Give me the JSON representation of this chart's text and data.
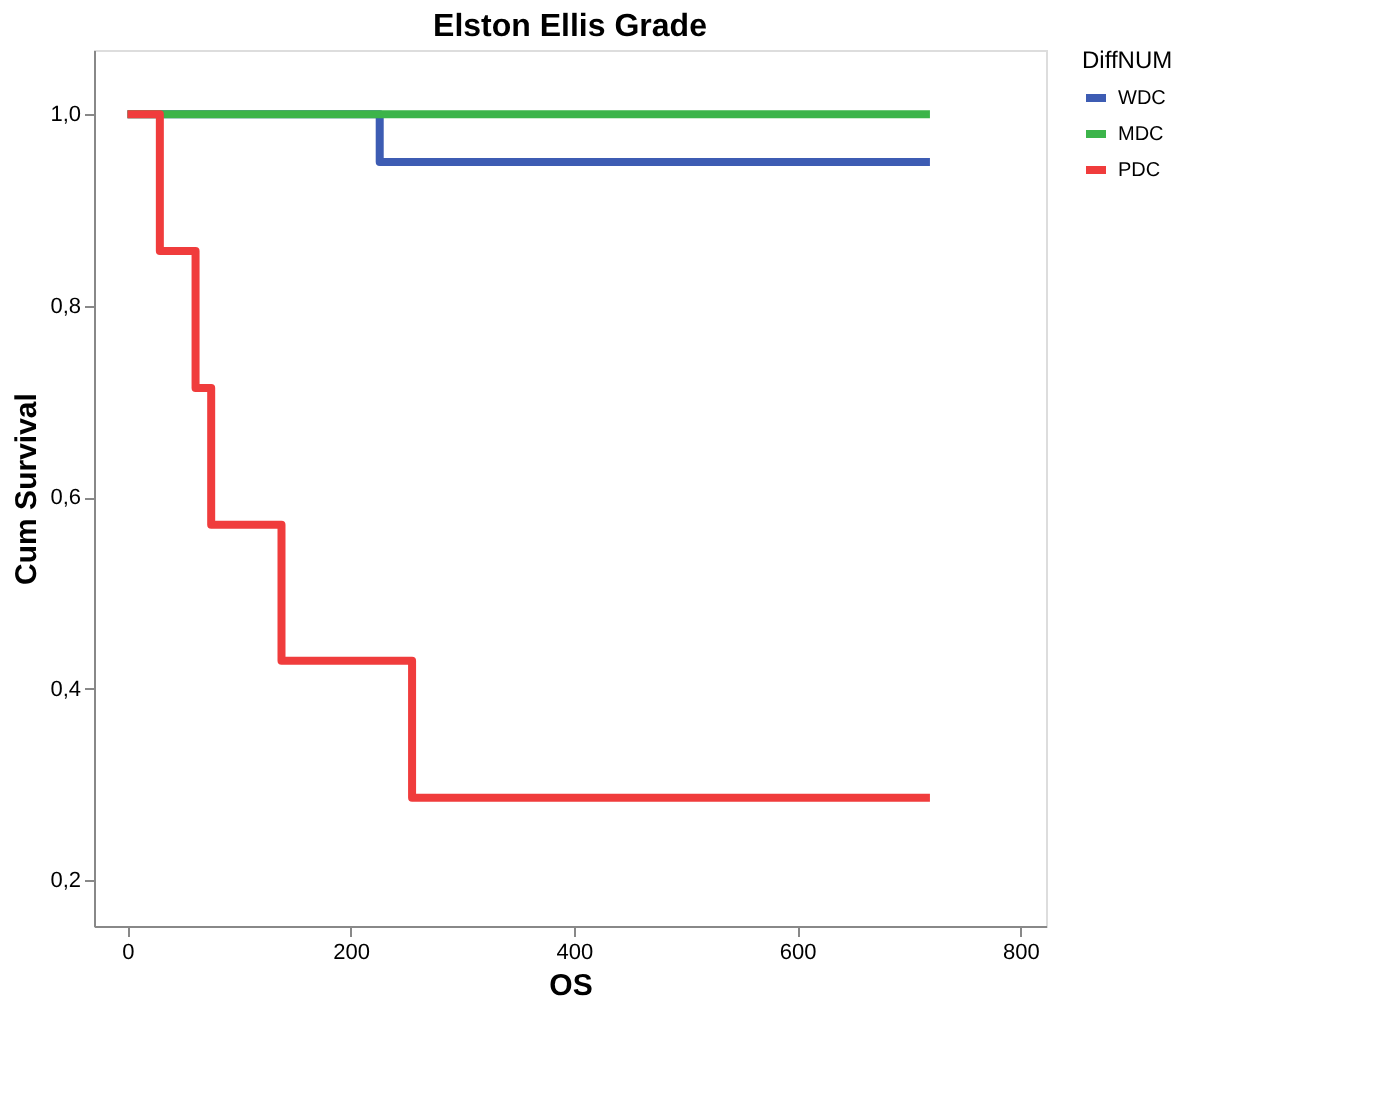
{
  "chart_data": {
    "type": "step",
    "title": "Elston Ellis Grade",
    "xlabel": "OS",
    "ylabel": "Cum Survival",
    "legend_title": "DiffNUM",
    "legend": "top right",
    "grid": false,
    "xlim": [
      -30,
      823
    ],
    "ylim": [
      0.152,
      1.067
    ],
    "xticks": [
      0,
      200,
      400,
      600,
      800
    ],
    "yticks": [
      {
        "value": 0.2,
        "label": "0,2"
      },
      {
        "value": 0.4,
        "label": "0,4"
      },
      {
        "value": 0.6,
        "label": "0,6"
      },
      {
        "value": 0.8,
        "label": "0,8"
      },
      {
        "value": 1.0,
        "label": "1,0"
      }
    ],
    "series": [
      {
        "name": "WDC",
        "color": "#3d5cb3",
        "x": [
          0,
          226,
          719
        ],
        "values": [
          1.0,
          0.95,
          0.95
        ]
      },
      {
        "name": "MDC",
        "color": "#3cb44a",
        "x": [
          0,
          719
        ],
        "values": [
          1.0,
          1.0
        ]
      },
      {
        "name": "PDC",
        "color": "#f03c3c",
        "x": [
          0,
          29,
          61,
          75,
          138,
          255,
          719
        ],
        "values": [
          1.0,
          0.857,
          0.714,
          0.571,
          0.429,
          0.286,
          0.286
        ]
      }
    ]
  }
}
